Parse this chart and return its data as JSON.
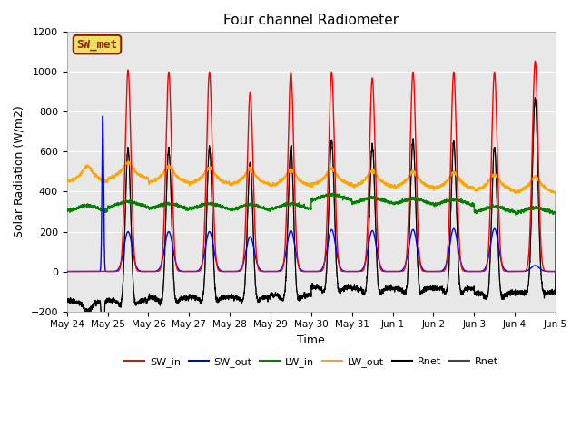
{
  "title": "Four channel Radiometer",
  "xlabel": "Time",
  "ylabel": "Solar Radiation (W/m2)",
  "ylim": [
    -200,
    1200
  ],
  "plot_bg_color": "#e8e8e8",
  "fig_bg_color": "#ffffff",
  "annotation_text": "SW_met",
  "annotation_bg": "#f0e060",
  "annotation_border": "#8b2000",
  "legend_entries": [
    "SW_in",
    "SW_out",
    "LW_in",
    "LW_out",
    "Rnet",
    "Rnet"
  ],
  "legend_colors": [
    "red",
    "blue",
    "green",
    "orange",
    "black",
    "#444444"
  ],
  "legend_linestyles": [
    "-",
    "-",
    "-",
    "-",
    "-",
    "-"
  ],
  "x_tick_labels": [
    "May 24",
    "May 25",
    "May 26",
    "May 27",
    "May 28",
    "May 29",
    "May 30",
    "May 31",
    "Jun 1",
    "Jun 2",
    "Jun 3",
    "Jun 4",
    "Jun 5"
  ],
  "yticks": [
    -200,
    0,
    200,
    400,
    600,
    800,
    1000,
    1200
  ],
  "sw_in_peaks": [
    0,
    1010,
    1000,
    1000,
    900,
    1000,
    1000,
    970,
    1000,
    1000,
    1000,
    1055
  ],
  "sw_out_peaks": [
    0,
    200,
    200,
    200,
    175,
    205,
    210,
    205,
    210,
    215,
    215,
    30
  ],
  "lw_in_base": [
    300,
    320,
    310,
    310,
    305,
    310,
    355,
    340,
    335,
    330,
    295,
    290
  ],
  "lw_out_base": [
    450,
    465,
    445,
    440,
    435,
    430,
    435,
    425,
    420,
    415,
    405,
    395
  ],
  "rnet_night": -120,
  "n_days": 12
}
